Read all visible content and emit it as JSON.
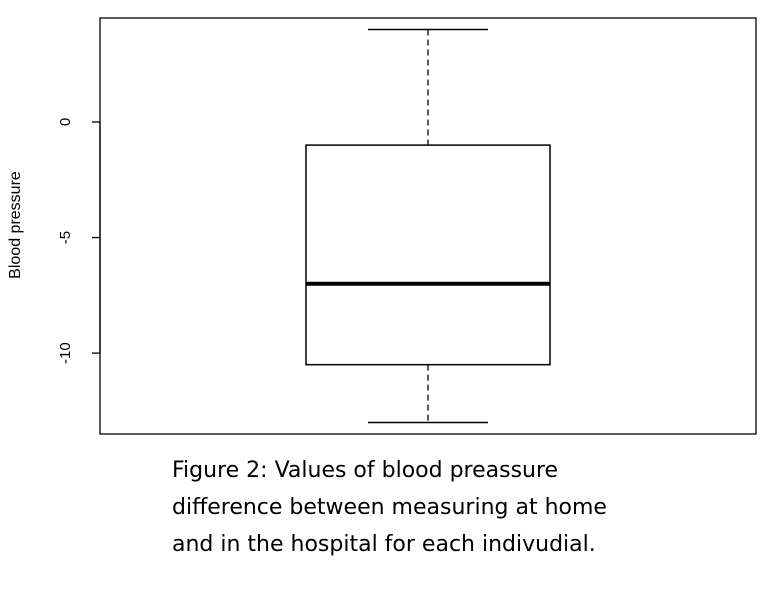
{
  "chart_data": {
    "type": "box",
    "ylabel": "Blood pressure",
    "ylim": [
      -13.5,
      4.5
    ],
    "yticks": [
      {
        "value": 0,
        "label": "0"
      },
      {
        "value": -5,
        "label": "-5"
      },
      {
        "value": -10,
        "label": "-10"
      }
    ],
    "box": {
      "whisker_max": 4,
      "q3": -1,
      "median": -7,
      "q1": -10.5,
      "whisker_min": -13
    },
    "grid": false,
    "legend": "none"
  },
  "caption": {
    "line1": "Figure 2: Values of blood preassure",
    "line2": "difference between measuring at home",
    "line3": "and in the hospital for each indivudial."
  }
}
